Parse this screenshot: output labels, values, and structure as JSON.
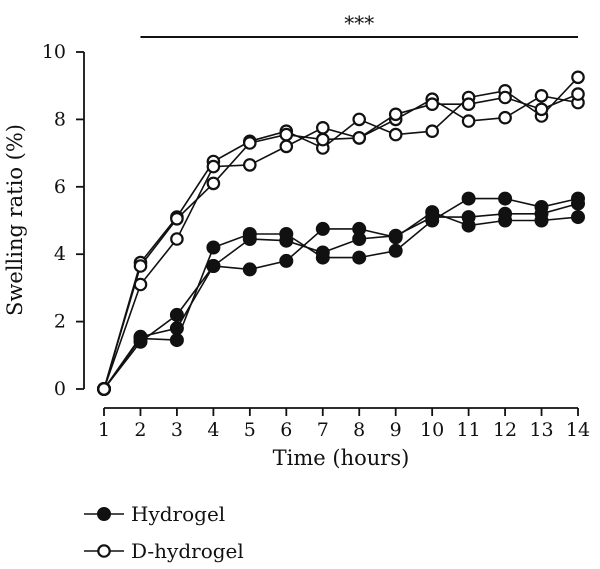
{
  "chart_data": {
    "type": "line",
    "title": "",
    "xlabel": "Time (hours)",
    "ylabel": "Swelling ratio (%)",
    "xlim": [
      1,
      14
    ],
    "ylim": [
      0,
      10
    ],
    "x_ticks": [
      1,
      2,
      3,
      4,
      5,
      6,
      7,
      8,
      9,
      10,
      11,
      12,
      13,
      14
    ],
    "y_ticks": [
      0,
      2,
      4,
      6,
      8,
      10
    ],
    "grid": false,
    "legend_position": "bottom-left",
    "significance": {
      "label": "***",
      "from_x": 2,
      "to_x": 14
    },
    "x": [
      1,
      2,
      3,
      4,
      5,
      6,
      7,
      8,
      9,
      10,
      11,
      12,
      13,
      14
    ],
    "series": [
      {
        "name": "Hydrogel",
        "marker": "filled-circle",
        "values": [
          0,
          1.5,
          1.45,
          4.2,
          4.6,
          4.6,
          3.9,
          3.9,
          4.1,
          5.0,
          5.65,
          5.65,
          5.4,
          5.65
        ]
      },
      {
        "name": "Hydrogel",
        "marker": "filled-circle",
        "values": [
          0,
          1.4,
          2.2,
          3.65,
          3.55,
          3.8,
          4.75,
          4.75,
          4.5,
          5.25,
          4.85,
          5.0,
          5.0,
          5.1
        ]
      },
      {
        "name": "Hydrogel",
        "marker": "filled-circle",
        "values": [
          0,
          1.55,
          1.8,
          3.65,
          4.45,
          4.4,
          4.05,
          4.45,
          4.55,
          5.1,
          5.1,
          5.2,
          5.2,
          5.5
        ]
      },
      {
        "name": "D-hydrogel",
        "marker": "open-circle",
        "values": [
          0,
          3.75,
          5.1,
          6.75,
          7.35,
          7.65,
          7.15,
          8.0,
          7.55,
          7.65,
          8.65,
          8.85,
          8.1,
          9.25
        ]
      },
      {
        "name": "D-hydrogel",
        "marker": "open-circle",
        "values": [
          0,
          3.1,
          4.45,
          6.6,
          6.65,
          7.2,
          7.75,
          7.45,
          8.0,
          8.6,
          7.95,
          8.05,
          8.7,
          8.5
        ]
      },
      {
        "name": "D-hydrogel",
        "marker": "open-circle",
        "values": [
          0,
          3.65,
          5.05,
          6.1,
          7.3,
          7.55,
          7.4,
          7.45,
          8.15,
          8.45,
          8.45,
          8.65,
          8.3,
          8.75
        ]
      }
    ],
    "legend": [
      {
        "label": "Hydrogel",
        "marker": "filled-circle"
      },
      {
        "label": "D-hydrogel",
        "marker": "open-circle"
      }
    ]
  }
}
